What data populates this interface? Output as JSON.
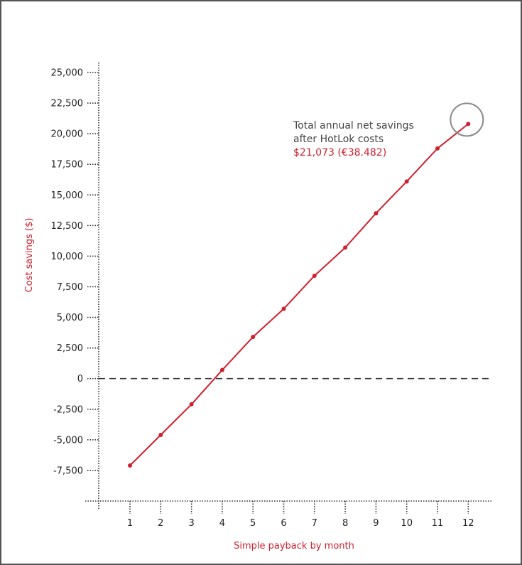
{
  "chart_data": {
    "type": "line",
    "title": "",
    "xlabel": "Simple payback by month",
    "ylabel": "Cost savings ($)",
    "categories": [
      "1",
      "2",
      "3",
      "4",
      "5",
      "6",
      "7",
      "8",
      "9",
      "10",
      "11",
      "12"
    ],
    "series": [
      {
        "values": [
          -7100,
          -4600,
          -2100,
          700,
          3400,
          5700,
          8400,
          10700,
          13500,
          16100,
          18800,
          20800
        ]
      }
    ],
    "yticks": [
      "25,000",
      "22,500",
      "20,000",
      "17,500",
      "15,000",
      "12,500",
      "10,000",
      "7,500",
      "5,000",
      "2,500",
      "0",
      "-2,500",
      "-5,000",
      "-7,500"
    ],
    "ylim": [
      -10000,
      25000
    ],
    "grid": false,
    "annotation": {
      "line1": "Total annual net savings",
      "line2": "after HotLok costs",
      "value": "$21,073 (€38.482)"
    },
    "colors": {
      "series": "#d0202e",
      "accent_text": "#d0202e",
      "axis": "#333333",
      "highlight_circle": "#8a8a8a",
      "zero_line": "#333333"
    }
  }
}
